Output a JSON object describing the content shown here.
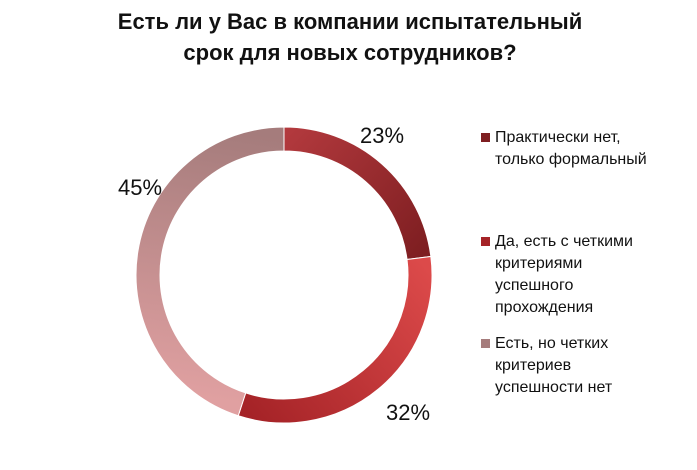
{
  "chart_data": {
    "type": "pie",
    "title_lines": [
      "Есть ли у Вас в компании испытательный",
      "срок для новых сотрудников?"
    ],
    "slices": [
      {
        "label": "Практически нет, только формальный",
        "label_lines": [
          "Практически нет,",
          "только формальный"
        ],
        "value": 23,
        "value_label": "23%",
        "color": "#7e1e21",
        "color_light": "#b2393d"
      },
      {
        "label": "Да, есть с четкими критериями успешного прохождения",
        "label_lines": [
          "Да, есть с четкими",
          "критериями",
          "успешного",
          "прохождения"
        ],
        "value": 32,
        "value_label": "32%",
        "color": "#a52327",
        "color_light": "#dc4a4a"
      },
      {
        "label": "Есть, но четких критериев успешности нет",
        "label_lines": [
          "Есть, но четких",
          "критериев",
          "успешности нет"
        ],
        "value": 45,
        "value_label": "45%",
        "color": "#a57c7c",
        "color_light": "#e0a0a1"
      }
    ],
    "donut": true,
    "start_angle_deg": 0,
    "direction": "clockwise",
    "legend_position": "right"
  }
}
